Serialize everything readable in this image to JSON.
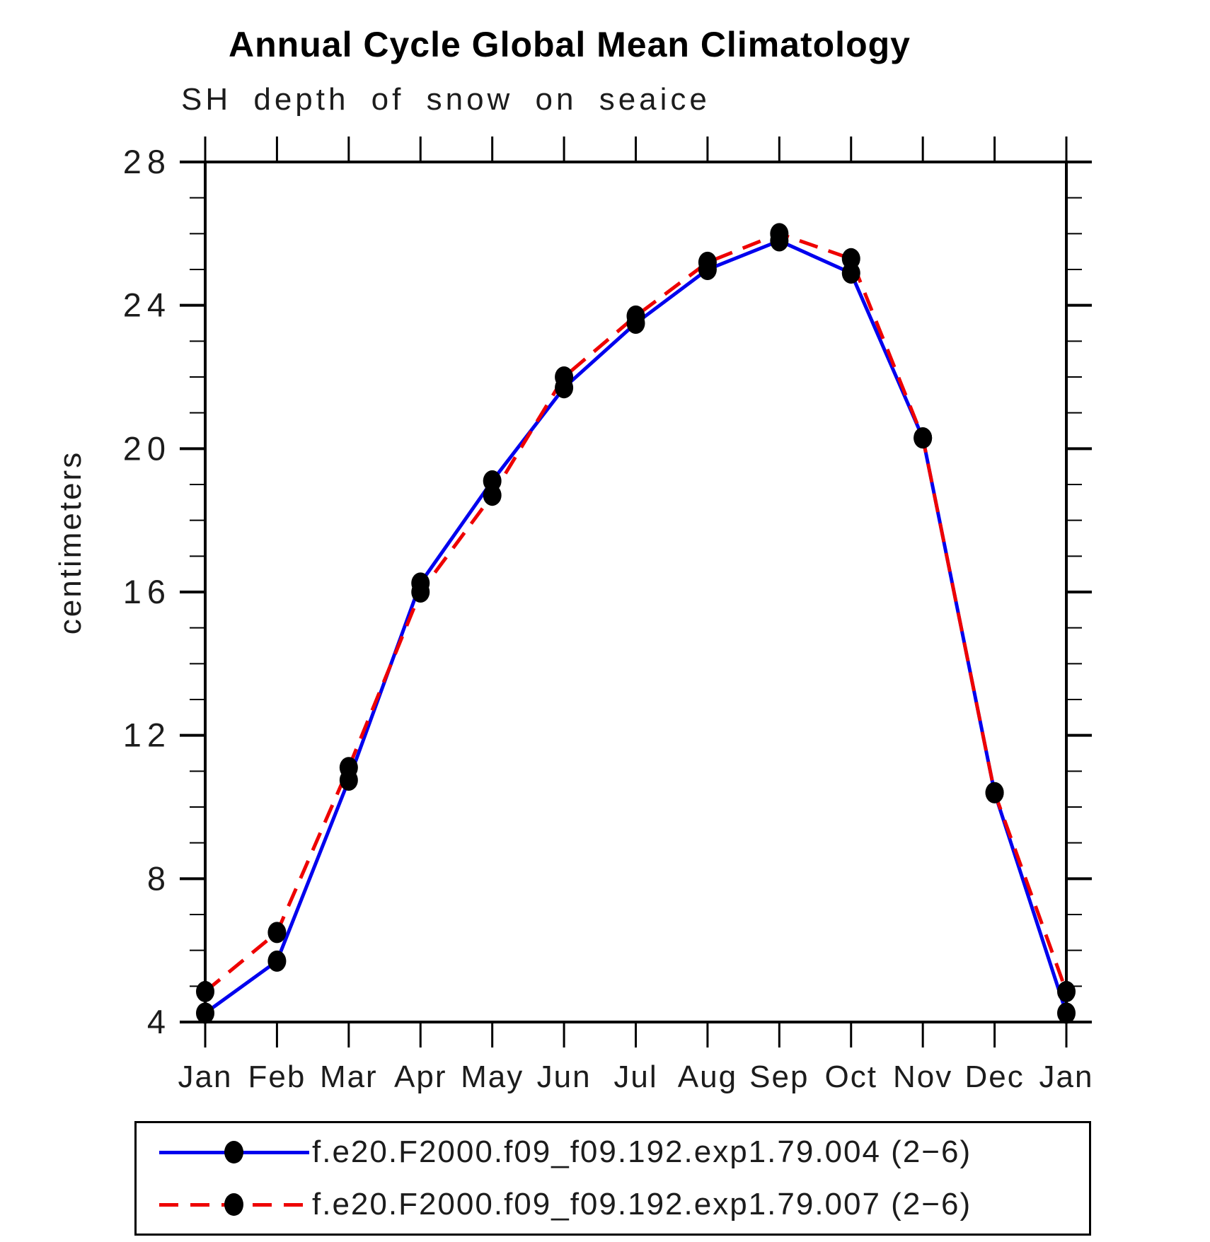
{
  "title": "Annual Cycle Global Mean Climatology",
  "subtitle": "SH depth of snow on seaice",
  "y_axis_title": "centimeters",
  "colors": {
    "series1": "#0000ee",
    "series2": "#ee0000",
    "marker": "#000000",
    "axis": "#000000",
    "background": "#ffffff"
  },
  "legend": {
    "entries": [
      {
        "label": "f.e20.F2000.f09_f09.192.exp1.79.004 (2−6)",
        "line_style": "solid",
        "line_color": "#0000ee",
        "marker": "black-dot"
      },
      {
        "label": "f.e20.F2000.f09_f09.192.exp1.79.007 (2−6)",
        "line_style": "dashed",
        "line_color": "#ee0000",
        "marker": "black-dot"
      }
    ]
  },
  "chart_data": {
    "type": "line",
    "title": "Annual Cycle Global Mean Climatology",
    "subtitle": "SH depth of snow on seaice",
    "ylabel": "centimeters",
    "xlabel": "",
    "categories": [
      "Jan",
      "Feb",
      "Mar",
      "Apr",
      "May",
      "Jun",
      "Jul",
      "Aug",
      "Sep",
      "Oct",
      "Nov",
      "Dec",
      "Jan"
    ],
    "series": [
      {
        "name": "f.e20.F2000.f09_f09.192.exp1.79.004 (2−6)",
        "color": "#0000ee",
        "dash": "solid",
        "values": [
          4.25,
          5.7,
          10.75,
          16.25,
          19.1,
          21.7,
          23.5,
          25.0,
          25.8,
          24.9,
          20.3,
          10.4,
          4.25
        ]
      },
      {
        "name": "f.e20.F2000.f09_f09.192.exp1.79.007 (2−6)",
        "color": "#ee0000",
        "dash": "dashed",
        "values": [
          4.85,
          6.5,
          11.1,
          16.0,
          18.7,
          22.0,
          23.7,
          25.2,
          26.0,
          25.3,
          20.3,
          10.4,
          4.85
        ]
      }
    ],
    "ylim": [
      4,
      28
    ],
    "yticks": [
      4,
      8,
      12,
      16,
      20,
      24,
      28
    ],
    "y_minor_tick_step": 1,
    "grid": false,
    "legend_position": "bottom",
    "marker": "filled-circle"
  }
}
